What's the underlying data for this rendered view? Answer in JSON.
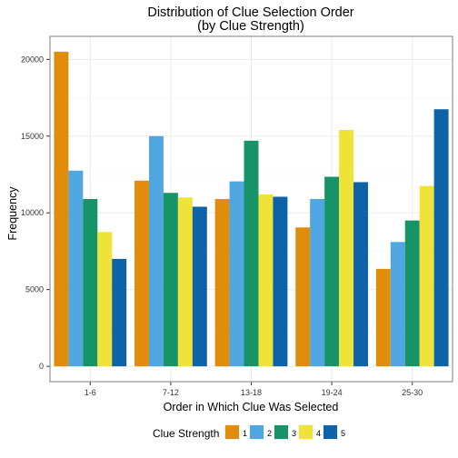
{
  "chart_data": {
    "type": "bar",
    "title": "Distribution of Clue Selection Order",
    "subtitle": "(by Clue Strength)",
    "xlabel": "Order in Which Clue Was Selected",
    "ylabel": "Frequency",
    "categories": [
      "1-6",
      "7-12",
      "13-18",
      "19-24",
      "25-30"
    ],
    "ylim": [
      -1000,
      21500
    ],
    "yticks": [
      0,
      5000,
      10000,
      15000,
      20000
    ],
    "grid": true,
    "legend": {
      "title": "Clue Strength",
      "position": "bottom"
    },
    "series": [
      {
        "name": "1",
        "color": "#E08D0B",
        "values": [
          20500,
          12100,
          10900,
          9050,
          6350
        ]
      },
      {
        "name": "2",
        "color": "#4FA6E1",
        "values": [
          12750,
          15000,
          12050,
          10900,
          8100
        ]
      },
      {
        "name": "3",
        "color": "#169367",
        "values": [
          10900,
          11300,
          14700,
          12350,
          9500
        ]
      },
      {
        "name": "4",
        "color": "#EFE238",
        "values": [
          8750,
          11000,
          11200,
          15400,
          11750
        ]
      },
      {
        "name": "5",
        "color": "#0D62A8",
        "values": [
          7000,
          10400,
          11050,
          12000,
          16750
        ]
      }
    ]
  }
}
